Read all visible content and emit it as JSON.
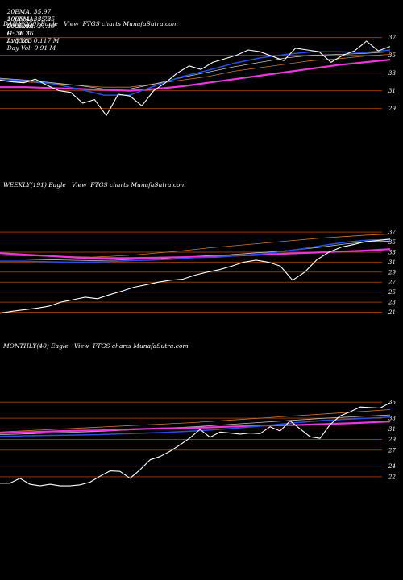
{
  "header": {
    "row1": [
      "20EMA: 35.97",
      "100EMA: 35.35",
      "O: 35.90",
      "H: 36.36",
      "Avg Vol: 0.117 M"
    ],
    "row2": [
      "30EMA: 35.72",
      "200EMA: 34.49",
      "C: 36.21",
      "L: 35.83",
      "Day Vol: 0.91 M"
    ]
  },
  "colors": {
    "background": "#000000",
    "price": "#ffffff",
    "ema_fast": "#2b4fd9",
    "ema_200": "#e63ad6",
    "ema_mid": "#c8c8c8",
    "ema_slow": "#c87a3a",
    "gridline": "#8b3a0a"
  },
  "chart_data": [
    {
      "type": "line",
      "title": "DAILY(250) Eagle   View  FTGS charts MunafaSutra.com",
      "yticks": [
        "37",
        "35",
        "33",
        "31",
        "29"
      ],
      "ylim": [
        27.6,
        37.6
      ],
      "n_points": 250,
      "series": [
        {
          "key": "price",
          "values": [
            32.2,
            32.0,
            31.9,
            32.3,
            31.6,
            31.0,
            30.8,
            29.6,
            30.0,
            28.2,
            30.6,
            30.4,
            29.3,
            31.0,
            31.9,
            33.0,
            33.8,
            33.4,
            34.2,
            34.6,
            35.0,
            35.6,
            35.4,
            34.9,
            34.4,
            35.8,
            35.6,
            35.4,
            34.2,
            35.0,
            35.5,
            36.6,
            35.5,
            36.0
          ]
        },
        {
          "key": "ema_fast",
          "values": [
            32.3,
            32.1,
            31.8,
            31.2,
            30.5,
            30.5,
            31.6,
            32.6,
            33.3,
            34.1,
            34.7,
            35.1,
            35.4,
            35.4,
            35.3,
            35.6
          ]
        },
        {
          "key": "ema_mid",
          "values": [
            32.4,
            32.2,
            31.9,
            31.6,
            31.2,
            31.2,
            31.8,
            32.5,
            33.1,
            33.7,
            34.2,
            34.7,
            35.0,
            35.1,
            35.2,
            35.4
          ]
        },
        {
          "key": "ema_slow",
          "values": [
            32.1,
            32.0,
            31.8,
            31.6,
            31.4,
            31.4,
            31.8,
            32.2,
            32.6,
            33.2,
            33.6,
            34.0,
            34.4,
            34.6,
            34.9,
            35.1
          ]
        },
        {
          "key": "ema_200",
          "values": [
            31.4,
            31.4,
            31.3,
            31.2,
            31.1,
            31.0,
            31.2,
            31.5,
            31.9,
            32.3,
            32.7,
            33.1,
            33.5,
            33.9,
            34.2,
            34.5
          ]
        }
      ]
    },
    {
      "type": "line",
      "title": "WEEKLY(191) Eagle   View  FTGS charts MunafaSutra.com",
      "yticks": [
        "37",
        "35",
        "33",
        "31",
        "29",
        "27",
        "25",
        "23",
        "21"
      ],
      "ylim": [
        19.8,
        38.3
      ],
      "n_points": 191,
      "series": [
        {
          "key": "price",
          "values": [
            20.8,
            21.2,
            21.5,
            21.8,
            22.2,
            23.0,
            23.5,
            24.0,
            23.7,
            24.5,
            25.2,
            26.0,
            26.5,
            27.0,
            27.4,
            27.6,
            28.4,
            29.0,
            29.5,
            30.2,
            31.0,
            31.4,
            31.0,
            30.2,
            27.4,
            29.0,
            31.5,
            33.0,
            34.0,
            34.5,
            35.1,
            35.3,
            35.6
          ]
        },
        {
          "key": "ema_fast",
          "values": [
            31.2,
            31.2,
            31.1,
            31.0,
            31.0,
            31.1,
            31.3,
            31.4,
            31.6,
            31.9,
            32.0,
            32.3,
            32.6,
            33.1,
            33.7,
            34.4,
            35.0,
            35.4,
            35.5
          ]
        },
        {
          "key": "ema_mid",
          "values": [
            31.6,
            31.6,
            31.5,
            31.4,
            31.3,
            31.4,
            31.6,
            31.7,
            32.0,
            32.3,
            32.5,
            32.8,
            33.1,
            33.5,
            34.0,
            34.6,
            35.0,
            35.2
          ]
        },
        {
          "key": "ema_slow",
          "values": [
            32.4,
            32.3,
            32.2,
            32.1,
            32.0,
            32.2,
            32.5,
            32.9,
            33.3,
            33.8,
            34.2,
            34.6,
            35.0,
            35.4,
            35.8,
            36.1,
            36.4,
            36.6
          ]
        },
        {
          "key": "ema_200",
          "values": [
            32.8,
            32.5,
            32.2,
            31.9,
            31.8,
            31.8,
            31.9,
            32.0,
            32.1,
            32.3,
            32.5,
            32.7,
            32.9,
            33.1,
            33.3,
            33.6
          ]
        }
      ]
    },
    {
      "type": "line",
      "title": "MONTHLY(40) Eagle   View  FTGS charts MunafaSutra.com",
      "yticks": [
        "36",
        "33",
        "31",
        "29",
        "27",
        "24",
        "22"
      ],
      "ylim": [
        18.5,
        37.7
      ],
      "n_points": 40,
      "series": [
        {
          "key": "price",
          "values": [
            20.8,
            20.8,
            21.7,
            20.6,
            20.3,
            20.6,
            20.3,
            20.3,
            20.5,
            21.0,
            22.1,
            23.1,
            23.0,
            21.7,
            23.3,
            25.2,
            25.8,
            26.8,
            28.0,
            29.3,
            30.9,
            29.4,
            30.4,
            30.2,
            30.0,
            30.2,
            30.1,
            31.4,
            30.6,
            32.5,
            31.0,
            29.5,
            29.2,
            31.8,
            33.4,
            34.2,
            35.1,
            35.0,
            34.9,
            35.9
          ]
        },
        {
          "key": "ema_fast",
          "values": [
            29.6,
            29.7,
            29.8,
            29.9,
            30.1,
            30.3,
            30.6,
            31.0,
            31.5,
            32.1,
            32.6,
            32.9,
            33.2
          ]
        },
        {
          "key": "ema_mid",
          "values": [
            29.9,
            30.1,
            30.3,
            30.5,
            30.8,
            31.1,
            31.4,
            31.8,
            32.2,
            32.6,
            33.0,
            33.3,
            33.6
          ]
        },
        {
          "key": "ema_slow",
          "values": [
            30.4,
            30.7,
            31.0,
            31.3,
            31.6,
            31.9,
            32.2,
            32.6,
            33.0,
            33.4,
            33.8,
            34.2,
            34.6
          ]
        },
        {
          "key": "ema_200",
          "values": [
            30.2,
            30.4,
            30.6,
            30.7,
            30.9,
            31.1,
            31.2,
            31.4,
            31.6,
            31.7,
            31.9,
            32.1,
            32.4
          ]
        }
      ]
    }
  ]
}
